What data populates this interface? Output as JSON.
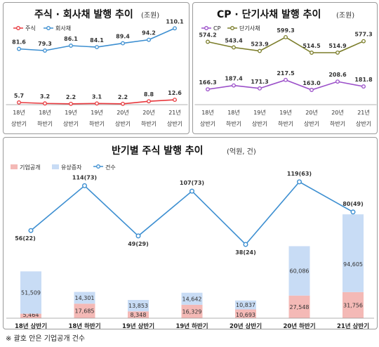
{
  "chart_data": [
    {
      "type": "line",
      "title": "주식 · 회사채 발행 추이",
      "unit": "(조원)",
      "categories": [
        "18년 상반기",
        "18년 하반기",
        "19년 상반기",
        "19년 하반기",
        "20년 상반기",
        "20년 하반기",
        "21년 상반기"
      ],
      "tick_top": [
        "18년",
        "18년",
        "19년",
        "19년",
        "20년",
        "20년",
        "21년"
      ],
      "tick_bottom": [
        "상반기",
        "하반기",
        "상반기",
        "하반기",
        "상반기",
        "하반기",
        "상반기"
      ],
      "series": [
        {
          "name": "주식",
          "color": "#e8383d",
          "values": [
            5.7,
            3.2,
            2.2,
            3.1,
            2.2,
            8.8,
            12.6
          ],
          "labels": [
            "5.7",
            "3.2",
            "2.2",
            "3.1",
            "2.2",
            "8.8",
            "12.6"
          ]
        },
        {
          "name": "회사채",
          "color": "#3d8fd1",
          "values": [
            81.6,
            79.3,
            86.1,
            84.1,
            89.4,
            94.2,
            110.1
          ],
          "labels": [
            "81.6",
            "79.3",
            "86.1",
            "84.1",
            "89.4",
            "94.2",
            "110.1"
          ]
        }
      ]
    },
    {
      "type": "line",
      "title": "CP · 단기사채 발행 추이",
      "unit": "(조원)",
      "categories": [
        "18년 상반기",
        "18년 하반기",
        "19년 상반기",
        "19년 하반기",
        "20년 상반기",
        "20년 하반기",
        "21년 상반기"
      ],
      "tick_top": [
        "18년",
        "18년",
        "19년",
        "19년",
        "20년",
        "20년",
        "21년"
      ],
      "tick_bottom": [
        "상반기",
        "하반기",
        "상반기",
        "하반기",
        "상반기",
        "하반기",
        "상반기"
      ],
      "series": [
        {
          "name": "CP",
          "color": "#9b4fc9",
          "values": [
            166.3,
            187.4,
            171.3,
            217.5,
            163.0,
            208.6,
            181.8
          ],
          "labels": [
            "166.3",
            "187.4",
            "171.3",
            "217.5",
            "163.0",
            "208.6",
            "181.8"
          ]
        },
        {
          "name": "단기사채",
          "color": "#7b7d2a",
          "values": [
            574.2,
            543.4,
            523.9,
            599.3,
            514.5,
            514.9,
            577.3
          ],
          "labels": [
            "574.2",
            "543.4",
            "523.9",
            "599.3",
            "514.5",
            "514.9",
            "577.3"
          ]
        }
      ]
    },
    {
      "type": "bar",
      "stacked": true,
      "title": "반기별 주식 발행 추이",
      "unit": "(억원, 건)",
      "categories": [
        "18년 상반기",
        "18년 하반기",
        "19년 상반기",
        "19년 하반기",
        "20년 상반기",
        "20년 하반기",
        "21년 상반기"
      ],
      "series": [
        {
          "name": "기업공개",
          "color": "#f4b9b6",
          "values": [
            5464,
            17685,
            8348,
            16329,
            10693,
            27548,
            31756
          ],
          "labels": [
            "5,464",
            "17,685",
            "8,348",
            "16,329",
            "10,693",
            "27,548",
            "31,756"
          ]
        },
        {
          "name": "유상증자",
          "color": "#c8dcf5",
          "values": [
            51509,
            14301,
            13853,
            14642,
            10837,
            60086,
            94605
          ],
          "labels": [
            "51,509",
            "14,301",
            "13,853",
            "14,642",
            "10,837",
            "60,086",
            "94,605"
          ]
        }
      ],
      "line_series": {
        "name": "건수",
        "color": "#3d8fd1",
        "values": [
          56,
          114,
          49,
          107,
          38,
          119,
          80
        ],
        "ipo_counts": [
          22,
          73,
          29,
          73,
          24,
          63,
          49
        ],
        "labels": [
          "56(22)",
          "114(73)",
          "49(29)",
          "107(73)",
          "38(24)",
          "119(63)",
          "80(49)"
        ]
      }
    }
  ],
  "footnote": "※ 괄호 안은 기업공개 건수"
}
